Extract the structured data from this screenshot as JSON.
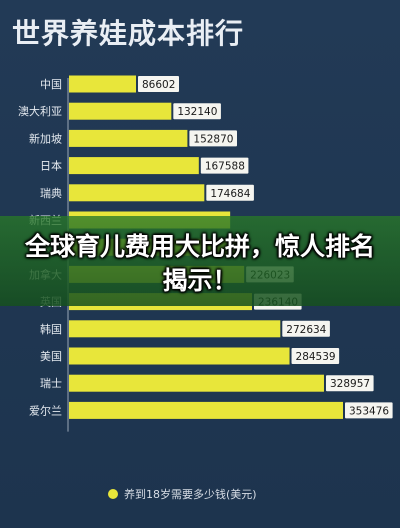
{
  "title": "世界养娃成本排行",
  "banner_text": "全球育儿费用大比拼，惊人排名揭示！",
  "chart_data": {
    "type": "bar",
    "orientation": "horizontal",
    "categories": [
      "中国",
      "澳大利亚",
      "新加坡",
      "日本",
      "瑞典",
      "新西兰",
      "意大利",
      "加拿大",
      "英国",
      "韩国",
      "美国",
      "瑞士",
      "爱尔兰"
    ],
    "values": [
      86602,
      132140,
      152870,
      167588,
      174684,
      208000,
      220000,
      226023,
      236140,
      272634,
      284539,
      328957,
      353476
    ],
    "value_labels": [
      "86602",
      "132140",
      "152870",
      "167588",
      "174684",
      "",
      "",
      "226023",
      "236140",
      "272634",
      "284539",
      "328957",
      "353476"
    ],
    "legend": "养到18岁需要多少钱(美元)",
    "bar_color": "#e8e63a",
    "label_bg": "#f5f5f0",
    "grid": false
  }
}
